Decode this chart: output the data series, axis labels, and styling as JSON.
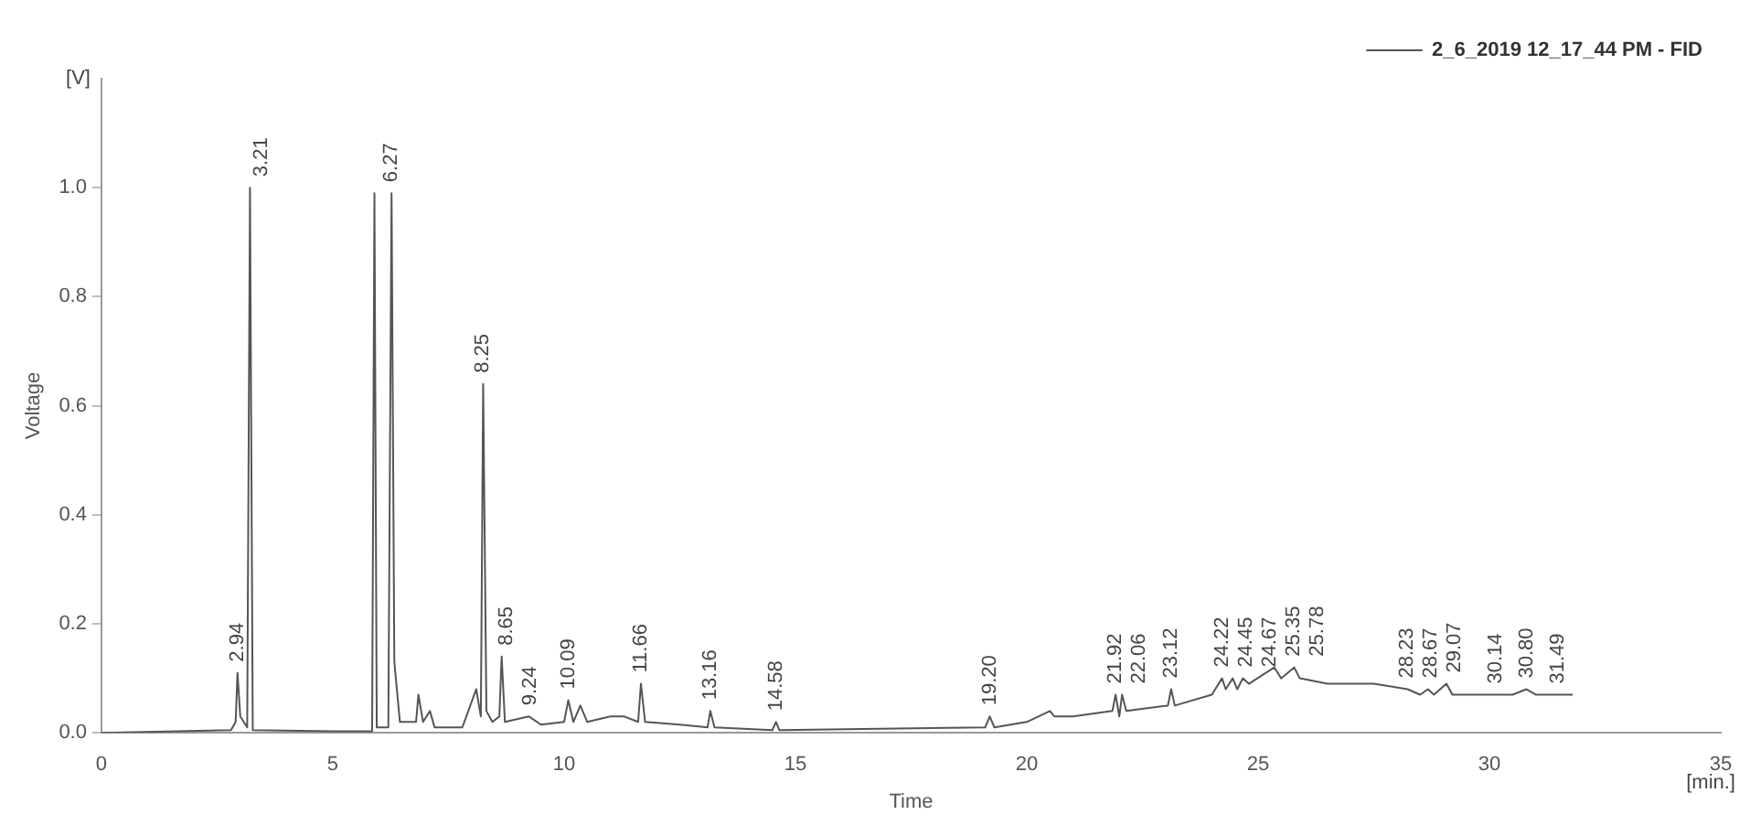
{
  "chart_data": {
    "type": "line",
    "xlabel": "Time",
    "ylabel": "Voltage",
    "legend": "top right",
    "marker": "none",
    "line_style": "solid",
    "xlim": [
      0,
      35
    ],
    "xticks": [
      0,
      5,
      10,
      15,
      20,
      25,
      30,
      35
    ],
    "ylim": [
      0,
      1.2
    ],
    "yticks": [
      {
        "value": 0,
        "label": "0.0"
      },
      {
        "value": 0.2,
        "label": "0.2"
      },
      {
        "value": 0.4,
        "label": "0.4"
      },
      {
        "value": 0.6,
        "label": "0.6"
      },
      {
        "value": 0.8,
        "label": "0.8"
      },
      {
        "value": 1,
        "label": "1.0"
      }
    ],
    "series": [
      {
        "name": "2_6_2019 12_17_44 PM - FID",
        "color": "#555555",
        "x": [
          0,
          2.8,
          2.9,
          2.94,
          3.0,
          3.15,
          3.21,
          3.27,
          5.0,
          5.85,
          5.9,
          5.95,
          6.2,
          6.27,
          6.33,
          6.45,
          6.8,
          6.85,
          6.95,
          7.1,
          7.2,
          7.8,
          8.1,
          8.2,
          8.25,
          8.32,
          8.45,
          8.6,
          8.65,
          8.72,
          9.24,
          9.5,
          10.0,
          10.09,
          10.2,
          10.35,
          10.5,
          11.0,
          11.3,
          11.6,
          11.66,
          11.75,
          12.5,
          13.1,
          13.16,
          13.25,
          14.5,
          14.58,
          14.65,
          19.1,
          19.2,
          19.3,
          20.0,
          20.5,
          20.6,
          21.0,
          21.85,
          21.92,
          22.0,
          22.06,
          22.15,
          23.05,
          23.12,
          23.2,
          24.0,
          24.22,
          24.3,
          24.45,
          24.55,
          24.67,
          24.8,
          25.35,
          25.5,
          25.78,
          25.9,
          26.5,
          27.5,
          28.23,
          28.5,
          28.67,
          28.8,
          29.07,
          29.2,
          30.14,
          30.5,
          30.8,
          31.0,
          31.49,
          31.8
        ],
        "values": [
          0,
          0.005,
          0.02,
          0.11,
          0.03,
          0.01,
          1.0,
          0.005,
          0.003,
          0.003,
          0.99,
          0.01,
          0.01,
          0.99,
          0.13,
          0.02,
          0.02,
          0.07,
          0.02,
          0.04,
          0.01,
          0.01,
          0.08,
          0.03,
          0.64,
          0.04,
          0.02,
          0.03,
          0.14,
          0.02,
          0.03,
          0.015,
          0.02,
          0.06,
          0.02,
          0.05,
          0.02,
          0.03,
          0.03,
          0.02,
          0.09,
          0.02,
          0.015,
          0.01,
          0.04,
          0.01,
          0.005,
          0.02,
          0.005,
          0.01,
          0.03,
          0.01,
          0.02,
          0.04,
          0.03,
          0.03,
          0.04,
          0.07,
          0.03,
          0.07,
          0.04,
          0.05,
          0.08,
          0.05,
          0.07,
          0.1,
          0.08,
          0.1,
          0.08,
          0.1,
          0.09,
          0.12,
          0.1,
          0.12,
          0.1,
          0.09,
          0.09,
          0.08,
          0.07,
          0.08,
          0.07,
          0.09,
          0.07,
          0.07,
          0.07,
          0.08,
          0.07,
          0.07,
          0.07
        ]
      }
    ],
    "annotations": [
      "[V]",
      "[min.]",
      {
        "text": "2.94",
        "x": 2.94,
        "y": 0.11
      },
      {
        "text": "3.21",
        "x": 3.21,
        "y": 1.0
      },
      {
        "text": "6.27",
        "x": 6.27,
        "y": 0.99
      },
      {
        "text": "8.25",
        "x": 8.25,
        "y": 0.64
      },
      {
        "text": "8.65",
        "x": 8.65,
        "y": 0.14
      },
      {
        "text": "9.24",
        "x": 9.24,
        "y": 0.03
      },
      {
        "text": "10.09",
        "x": 10.09,
        "y": 0.06
      },
      {
        "text": "11.66",
        "x": 11.66,
        "y": 0.09
      },
      {
        "text": "13.16",
        "x": 13.16,
        "y": 0.04
      },
      {
        "text": "14.58",
        "x": 14.58,
        "y": 0.02
      },
      {
        "text": "19.20",
        "x": 19.2,
        "y": 0.03
      },
      {
        "text": "21.92",
        "x": 21.92,
        "y": 0.07
      },
      {
        "text": "22.06",
        "x": 22.06,
        "y": 0.07
      },
      {
        "text": "23.12",
        "x": 23.12,
        "y": 0.08
      },
      {
        "text": "24.22",
        "x": 24.22,
        "y": 0.1
      },
      {
        "text": "24.45",
        "x": 24.45,
        "y": 0.1
      },
      {
        "text": "24.67",
        "x": 24.67,
        "y": 0.1
      },
      {
        "text": "25.35",
        "x": 25.35,
        "y": 0.12
      },
      {
        "text": "25.78",
        "x": 25.78,
        "y": 0.12
      },
      {
        "text": "28.23",
        "x": 28.23,
        "y": 0.08
      },
      {
        "text": "28.67",
        "x": 28.67,
        "y": 0.08
      },
      {
        "text": "29.07",
        "x": 29.07,
        "y": 0.09
      },
      {
        "text": "30.14",
        "x": 30.14,
        "y": 0.07
      },
      {
        "text": "30.80",
        "x": 30.8,
        "y": 0.08
      },
      {
        "text": "31.49",
        "x": 31.49,
        "y": 0.07
      }
    ]
  }
}
